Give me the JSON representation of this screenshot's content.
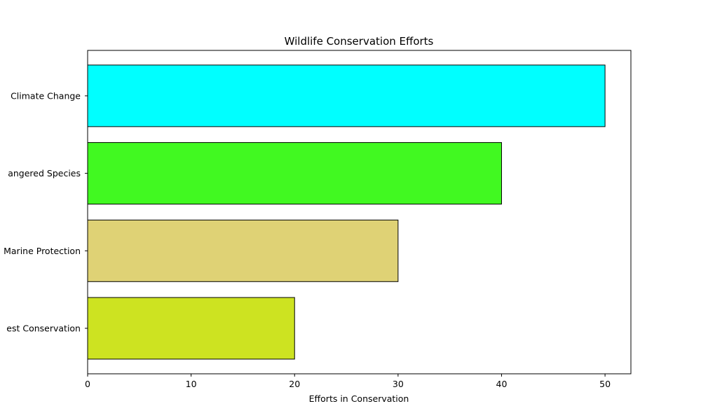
{
  "chart_data": {
    "type": "bar",
    "orientation": "horizontal",
    "title": "Wildlife Conservation Efforts",
    "xlabel": "Efforts in Conservation",
    "ylabel": "",
    "categories": [
      "est Conservation",
      "Marine Protection",
      "angered Species",
      "Climate Change"
    ],
    "values": [
      20,
      30,
      40,
      50
    ],
    "colors": [
      "#cde321",
      "#dfd275",
      "#41f921",
      "#00ffff"
    ],
    "edge_color": "#000000",
    "xlim": [
      0,
      52.5
    ],
    "xticks": [
      0,
      10,
      20,
      30,
      40,
      50
    ],
    "grid": false,
    "legend": null
  }
}
